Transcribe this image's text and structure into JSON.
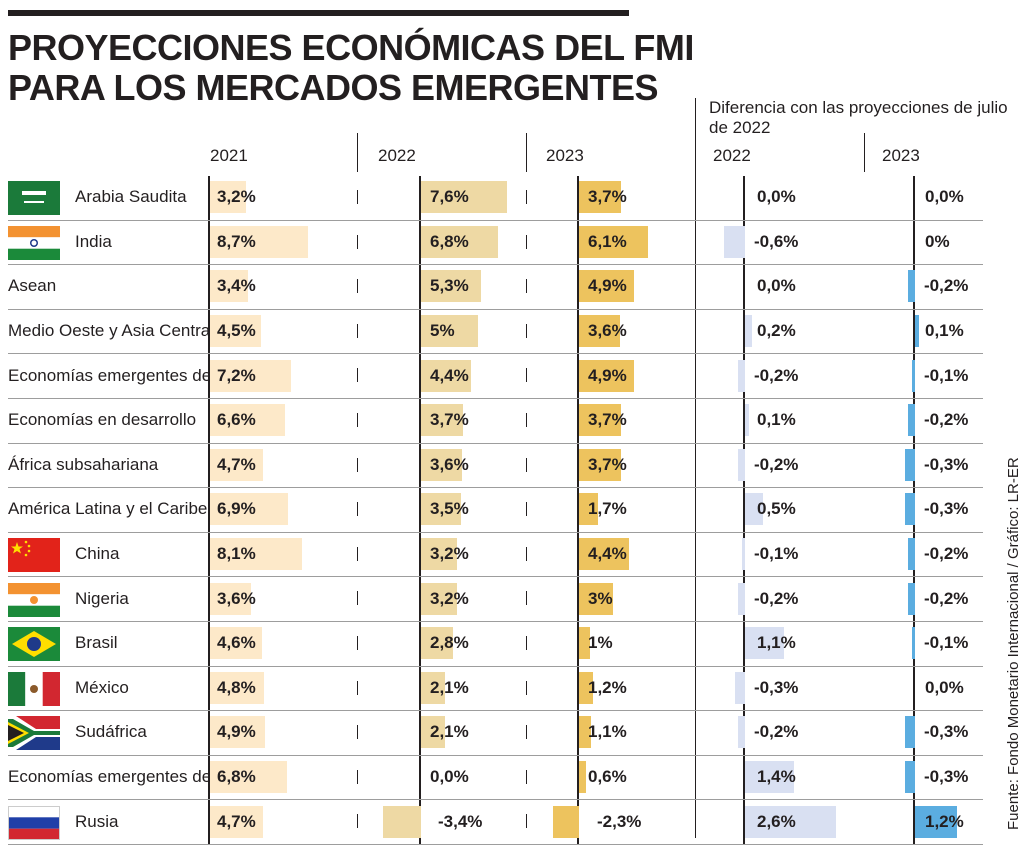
{
  "title": {
    "line1": "PROYECCIONES ECONÓMICAS DEL FMI",
    "line2": "PARA LOS MERCADOS EMERGENTES"
  },
  "diff_note": "Diferencia con las proyecciones de julio de 2022",
  "source": "Fuente: Fondo Monetario Internacional / Gráfico: LR-ER",
  "colors": {
    "bar_2021": "#fde9c9",
    "bar_2022": "#eed9a4",
    "bar_2023": "#edc35e",
    "diff_2022": "#d9e0f2",
    "diff_2023": "#5bade0"
  },
  "chart_data": {
    "type": "table",
    "columns": {
      "growth": [
        "2021",
        "2022",
        "2023"
      ],
      "difference": [
        "2022",
        "2023"
      ]
    },
    "units": "%",
    "rows": [
      {
        "name": "Arabia Saudita",
        "flag": "saudi-arabia",
        "v2021": 3.2,
        "v2022": 7.6,
        "v2023": 3.7,
        "d2022": 0.0,
        "d2023": 0.0,
        "l2021": "3,2%",
        "l2022": "7,6%",
        "l2023": "3,7%",
        "ld2022": "0,0%",
        "ld2023": "0,0%"
      },
      {
        "name": "India",
        "flag": "india",
        "v2021": 8.7,
        "v2022": 6.8,
        "v2023": 6.1,
        "d2022": -0.6,
        "d2023": 0.0,
        "l2021": "8,7%",
        "l2022": "6,8%",
        "l2023": "6,1%",
        "ld2022": "-0,6%",
        "ld2023": "0%"
      },
      {
        "name": "Asean",
        "flag": "",
        "v2021": 3.4,
        "v2022": 5.3,
        "v2023": 4.9,
        "d2022": 0.0,
        "d2023": -0.2,
        "l2021": "3,4%",
        "l2022": "5,3%",
        "l2023": "4,9%",
        "ld2022": "0,0%",
        "ld2023": "-0,2%"
      },
      {
        "name": "Medio Oeste y Asia Central",
        "flag": "",
        "v2021": 4.5,
        "v2022": 5.0,
        "v2023": 3.6,
        "d2022": 0.2,
        "d2023": 0.1,
        "l2021": "4,5%",
        "l2022": "5%",
        "l2023": "3,6%",
        "ld2022": "0,2%",
        "ld2023": "0,1%"
      },
      {
        "name": "Economías emergentes de Asia",
        "flag": "",
        "v2021": 7.2,
        "v2022": 4.4,
        "v2023": 4.9,
        "d2022": -0.2,
        "d2023": -0.1,
        "l2021": "7,2%",
        "l2022": "4,4%",
        "l2023": "4,9%",
        "ld2022": "-0,2%",
        "ld2023": "-0,1%"
      },
      {
        "name": "Economías en desarrollo",
        "flag": "",
        "v2021": 6.6,
        "v2022": 3.7,
        "v2023": 3.7,
        "d2022": 0.1,
        "d2023": -0.2,
        "l2021": "6,6%",
        "l2022": "3,7%",
        "l2023": "3,7%",
        "ld2022": "0,1%",
        "ld2023": "-0,2%"
      },
      {
        "name": "África subsahariana",
        "flag": "",
        "v2021": 4.7,
        "v2022": 3.6,
        "v2023": 3.7,
        "d2022": -0.2,
        "d2023": -0.3,
        "l2021": "4,7%",
        "l2022": "3,6%",
        "l2023": "3,7%",
        "ld2022": "-0,2%",
        "ld2023": "-0,3%"
      },
      {
        "name": "América Latina y el Caribe",
        "flag": "",
        "v2021": 6.9,
        "v2022": 3.5,
        "v2023": 1.7,
        "d2022": 0.5,
        "d2023": -0.3,
        "l2021": "6,9%",
        "l2022": "3,5%",
        "l2023": "1,7%",
        "ld2022": "0,5%",
        "ld2023": "-0,3%"
      },
      {
        "name": "China",
        "flag": "china",
        "v2021": 8.1,
        "v2022": 3.2,
        "v2023": 4.4,
        "d2022": -0.1,
        "d2023": -0.2,
        "l2021": "8,1%",
        "l2022": "3,2%",
        "l2023": "4,4%",
        "ld2022": "-0,1%",
        "ld2023": "-0,2%"
      },
      {
        "name": "Nigeria",
        "flag": "nigeria",
        "v2021": 3.6,
        "v2022": 3.2,
        "v2023": 3.0,
        "d2022": -0.2,
        "d2023": -0.2,
        "l2021": "3,6%",
        "l2022": "3,2%",
        "l2023": "3%",
        "ld2022": "-0,2%",
        "ld2023": "-0,2%"
      },
      {
        "name": "Brasil",
        "flag": "brazil",
        "v2021": 4.6,
        "v2022": 2.8,
        "v2023": 1.0,
        "d2022": 1.1,
        "d2023": -0.1,
        "l2021": "4,6%",
        "l2022": "2,8%",
        "l2023": "1%",
        "ld2022": "1,1%",
        "ld2023": "-0,1%"
      },
      {
        "name": "México",
        "flag": "mexico",
        "v2021": 4.8,
        "v2022": 2.1,
        "v2023": 1.2,
        "d2022": -0.3,
        "d2023": 0.0,
        "l2021": "4,8%",
        "l2022": "2,1%",
        "l2023": "1,2%",
        "ld2022": "-0,3%",
        "ld2023": "0,0%"
      },
      {
        "name": "Sudáfrica",
        "flag": "south-africa",
        "v2021": 4.9,
        "v2022": 2.1,
        "v2023": 1.1,
        "d2022": -0.2,
        "d2023": -0.3,
        "l2021": "4,9%",
        "l2022": "2,1%",
        "l2023": "1,1%",
        "ld2022": "-0,2%",
        "ld2023": "-0,3%"
      },
      {
        "name": "Economías emergentes de Europa",
        "flag": "",
        "v2021": 6.8,
        "v2022": 0.0,
        "v2023": 0.6,
        "d2022": 1.4,
        "d2023": -0.3,
        "l2021": "6,8%",
        "l2022": "0,0%",
        "l2023": "0,6%",
        "ld2022": "1,4%",
        "ld2023": "-0,3%"
      },
      {
        "name": "Rusia",
        "flag": "russia",
        "v2021": 4.7,
        "v2022": -3.4,
        "v2023": -2.3,
        "d2022": 2.6,
        "d2023": 1.2,
        "l2021": "4,7%",
        "l2022": "-3,4%",
        "l2023": "-2,3%",
        "ld2022": "2,6%",
        "ld2023": "1,2%"
      }
    ]
  }
}
